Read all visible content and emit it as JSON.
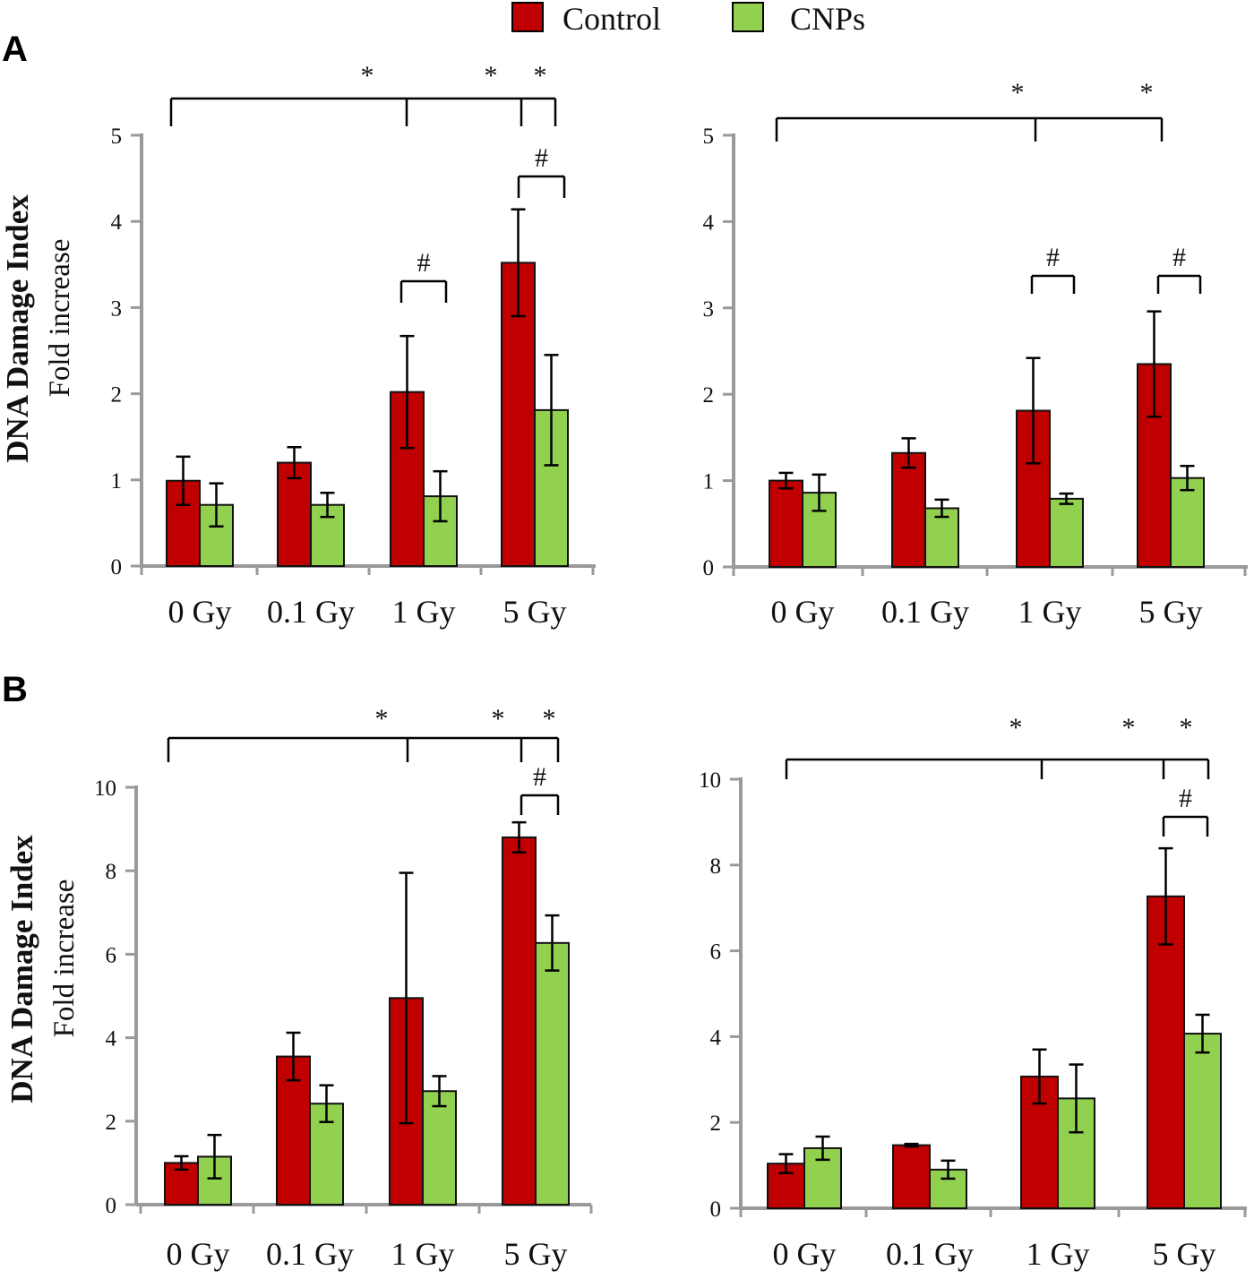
{
  "legend": {
    "items": [
      {
        "label": "Control",
        "color": "#c00000"
      },
      {
        "label": "CNPs",
        "color": "#92d050"
      }
    ]
  },
  "panel_labels": [
    "A",
    "B"
  ],
  "ylabel_main": "DNA Damage Index",
  "ylabel_sub": "Fold increase",
  "chart_data": [
    {
      "type": "bar",
      "panel": "A",
      "position": "left",
      "categories": [
        "0 Gy",
        "0.1 Gy",
        "1 Gy",
        "5 Gy"
      ],
      "ylim": [
        0,
        5
      ],
      "yticks": [
        0,
        1,
        2,
        3,
        4,
        5
      ],
      "ylabel": "DNA Damage Index Fold increase",
      "series": [
        {
          "name": "Control",
          "values": [
            0.99,
            1.2,
            2.02,
            3.52
          ],
          "errors": [
            0.28,
            0.18,
            0.65,
            0.62
          ]
        },
        {
          "name": "CNPs",
          "values": [
            0.71,
            0.71,
            0.81,
            1.81
          ],
          "errors": [
            0.25,
            0.14,
            0.29,
            0.64
          ]
        }
      ],
      "annotations": [
        {
          "type": "star-bracket",
          "symbol": "*",
          "labels": [
            "*",
            "*",
            "*"
          ]
        },
        {
          "type": "hash-bracket",
          "category": "1 Gy",
          "symbol": "#"
        },
        {
          "type": "hash-bracket",
          "category": "5 Gy",
          "symbol": "#"
        }
      ]
    },
    {
      "type": "bar",
      "panel": "A",
      "position": "right",
      "categories": [
        "0 Gy",
        "0.1 Gy",
        "1 Gy",
        "5 Gy"
      ],
      "ylim": [
        0,
        5
      ],
      "yticks": [
        0,
        1,
        2,
        3,
        4,
        5
      ],
      "ylabel": "",
      "series": [
        {
          "name": "Control",
          "values": [
            1.0,
            1.32,
            1.81,
            2.35
          ],
          "errors": [
            0.09,
            0.17,
            0.61,
            0.61
          ]
        },
        {
          "name": "CNPs",
          "values": [
            0.86,
            0.68,
            0.79,
            1.03
          ],
          "errors": [
            0.21,
            0.1,
            0.06,
            0.14
          ]
        }
      ],
      "annotations": [
        {
          "type": "star-bracket",
          "symbol": "*",
          "labels": [
            "*",
            "*"
          ]
        },
        {
          "type": "hash-bracket",
          "category": "1 Gy",
          "symbol": "#"
        },
        {
          "type": "hash-bracket",
          "category": "5 Gy",
          "symbol": "#"
        }
      ]
    },
    {
      "type": "bar",
      "panel": "B",
      "position": "left",
      "categories": [
        "0 Gy",
        "0.1 Gy",
        "1 Gy",
        "5 Gy"
      ],
      "ylim": [
        0,
        10
      ],
      "yticks": [
        0,
        2,
        4,
        6,
        8,
        10
      ],
      "ylabel": "DNA Damage Index Fold increase",
      "series": [
        {
          "name": "Control",
          "values": [
            1.0,
            3.55,
            4.95,
            8.8
          ],
          "errors": [
            0.16,
            0.57,
            3.0,
            0.36
          ]
        },
        {
          "name": "CNPs",
          "values": [
            1.15,
            2.42,
            2.72,
            6.27
          ],
          "errors": [
            0.52,
            0.44,
            0.36,
            0.66
          ]
        }
      ],
      "annotations": [
        {
          "type": "star-bracket",
          "symbol": "*",
          "labels": [
            "*",
            "*",
            "*"
          ]
        },
        {
          "type": "hash-bracket",
          "category": "5 Gy",
          "symbol": "#"
        }
      ]
    },
    {
      "type": "bar",
      "panel": "B",
      "position": "right",
      "categories": [
        "0 Gy",
        "0.1 Gy",
        "1 Gy",
        "5 Gy"
      ],
      "ylim": [
        0,
        10
      ],
      "yticks": [
        0,
        2,
        4,
        6,
        8,
        10
      ],
      "ylabel": "",
      "series": [
        {
          "name": "Control",
          "values": [
            1.04,
            1.47,
            3.07,
            7.27
          ],
          "errors": [
            0.22,
            0.03,
            0.63,
            1.12
          ]
        },
        {
          "name": "CNPs",
          "values": [
            1.4,
            0.9,
            2.56,
            4.07
          ],
          "errors": [
            0.27,
            0.21,
            0.79,
            0.44
          ]
        }
      ],
      "annotations": [
        {
          "type": "star-bracket",
          "symbol": "*",
          "labels": [
            "*",
            "*",
            "*"
          ]
        },
        {
          "type": "hash-bracket",
          "category": "5 Gy",
          "symbol": "#"
        }
      ]
    }
  ]
}
